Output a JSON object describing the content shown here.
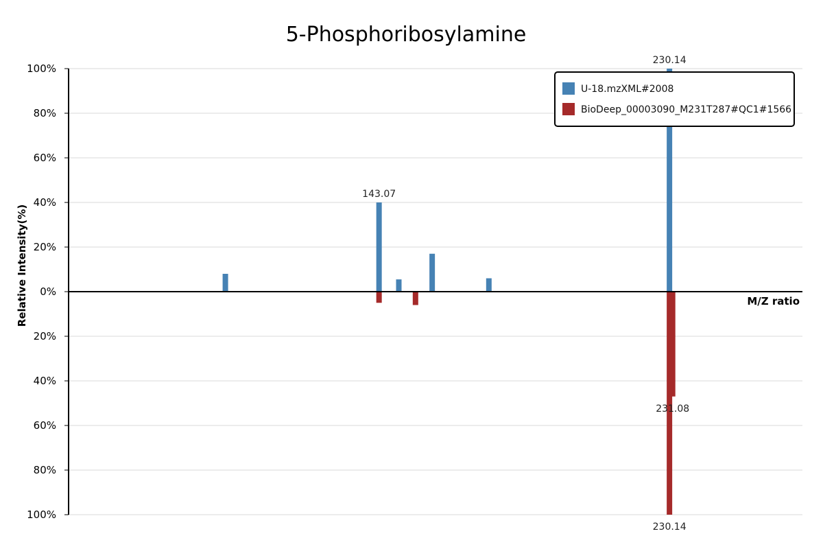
{
  "chart_data": {
    "type": "bar",
    "title": "5-Phosphoribosylamine",
    "xlabel": "M/Z ratio",
    "ylabel": "Relative Intensity(%)",
    "ylim": [
      -100,
      100
    ],
    "y_ticks": [
      "100%",
      "80%",
      "60%",
      "40%",
      "20%",
      "0%",
      "20%",
      "40%",
      "60%",
      "80%",
      "100%"
    ],
    "grid": "horizontal",
    "legend_position": "top-right",
    "series": [
      {
        "name": "U-18.mzXML#2008",
        "color": "#4682b4",
        "direction": "up",
        "points": [
          {
            "mz": 97.0,
            "intensity": 8
          },
          {
            "mz": 143.07,
            "intensity": 40,
            "label": "143.07"
          },
          {
            "mz": 149.0,
            "intensity": 5.5
          },
          {
            "mz": 159.0,
            "intensity": 17
          },
          {
            "mz": 176.0,
            "intensity": 6
          },
          {
            "mz": 230.14,
            "intensity": 100,
            "label": "230.14"
          }
        ]
      },
      {
        "name": "BioDeep_00003090_M231T287#QC1#1566",
        "color": "#a52a2a",
        "direction": "down",
        "points": [
          {
            "mz": 143.07,
            "intensity": 5
          },
          {
            "mz": 154.0,
            "intensity": 6
          },
          {
            "mz": 230.14,
            "intensity": 100,
            "label": "230.14"
          },
          {
            "mz": 231.08,
            "intensity": 47,
            "label": "231.08"
          }
        ]
      }
    ]
  }
}
